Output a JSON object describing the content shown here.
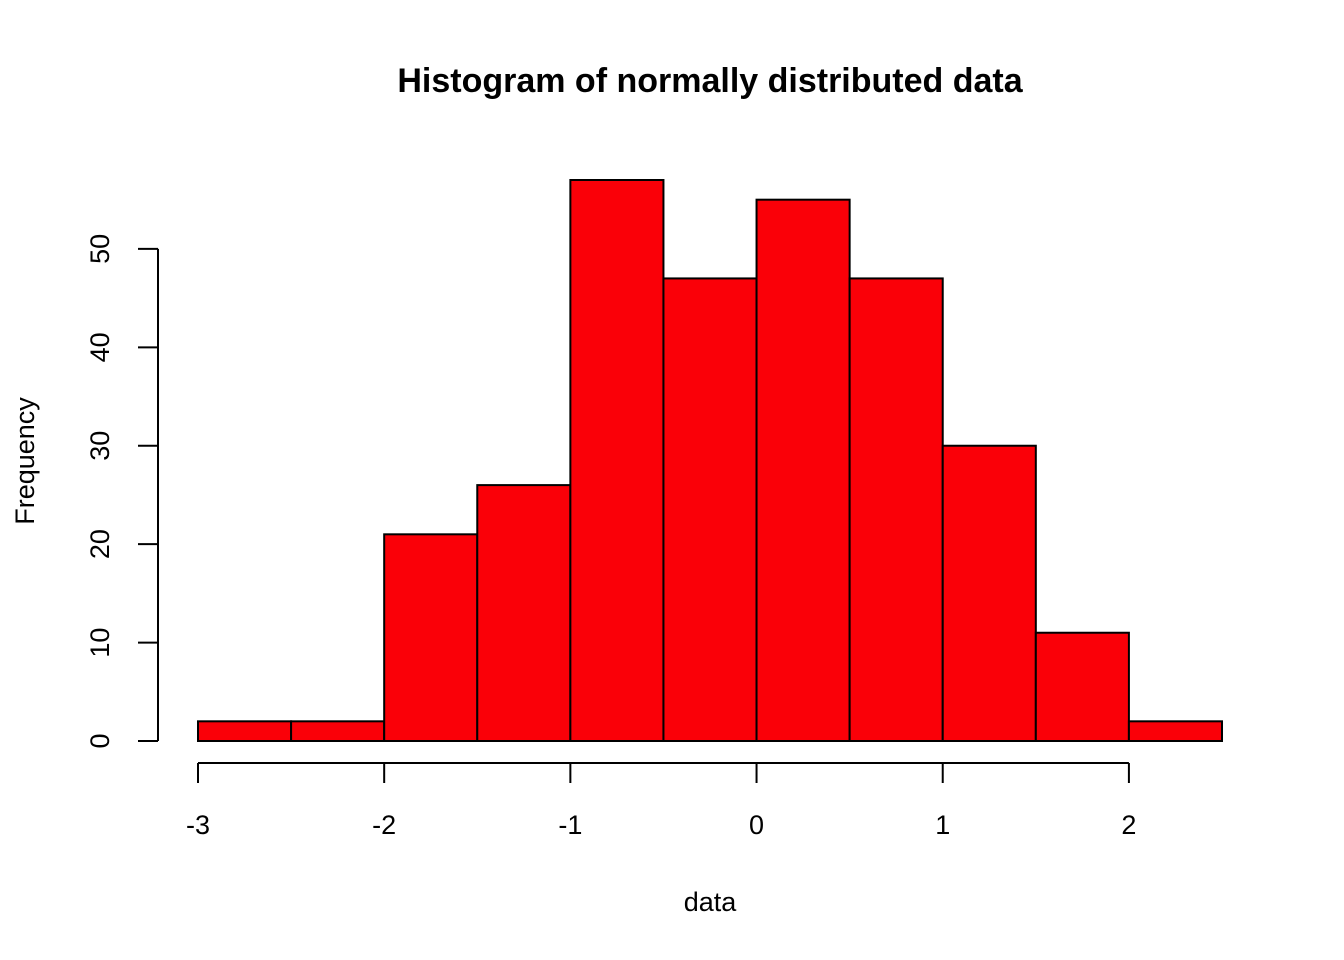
{
  "chart_data": {
    "type": "bar",
    "title": "Histogram of normally distributed data",
    "xlabel": "data",
    "ylabel": "Frequency",
    "bins": [
      {
        "from": -3.0,
        "to": -2.5,
        "count": 2
      },
      {
        "from": -2.5,
        "to": -2.0,
        "count": 2
      },
      {
        "from": -2.0,
        "to": -1.5,
        "count": 21
      },
      {
        "from": -1.5,
        "to": -1.0,
        "count": 26
      },
      {
        "from": -1.0,
        "to": -0.5,
        "count": 57
      },
      {
        "from": -0.5,
        "to": 0.0,
        "count": 47
      },
      {
        "from": 0.0,
        "to": 0.5,
        "count": 55
      },
      {
        "from": 0.5,
        "to": 1.0,
        "count": 47
      },
      {
        "from": 1.0,
        "to": 1.5,
        "count": 30
      },
      {
        "from": 1.5,
        "to": 2.0,
        "count": 11
      },
      {
        "from": 2.0,
        "to": 2.5,
        "count": 2
      }
    ],
    "x_ticks": [
      -3,
      -2,
      -1,
      0,
      1,
      2
    ],
    "x_tick_labels": [
      "-3",
      "-2",
      "-1",
      "0",
      "1",
      "2"
    ],
    "y_ticks": [
      0,
      10,
      20,
      30,
      40,
      50
    ],
    "y_tick_labels": [
      "0",
      "10",
      "20",
      "30",
      "40",
      "50"
    ],
    "xlim": [
      -3.0,
      2.5
    ],
    "ylim": [
      0,
      57
    ],
    "bar_color": "#fa0008",
    "grid": false
  }
}
